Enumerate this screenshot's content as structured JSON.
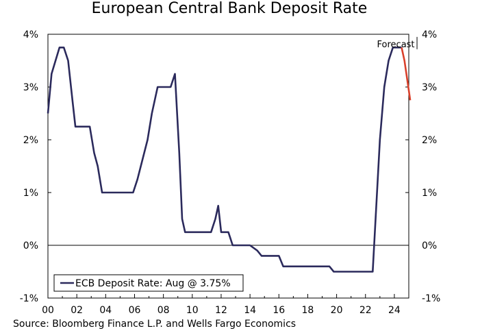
{
  "chart_data": {
    "type": "line",
    "title": "European Central Bank Deposit Rate",
    "xlabel": "",
    "ylabel": "",
    "xlim": [
      2000,
      2025
    ],
    "ylim": [
      -1,
      4
    ],
    "x_tick_labels": [
      "00",
      "02",
      "04",
      "06",
      "08",
      "10",
      "12",
      "14",
      "16",
      "18",
      "20",
      "22",
      "24"
    ],
    "y_tick_labels": [
      "-1%",
      "0%",
      "1%",
      "2%",
      "3%",
      "4%"
    ],
    "legend": "bottom-left",
    "grid": false,
    "series": [
      {
        "name": "ECB Deposit Rate: Aug @ 3.75%",
        "color": "#2b2a5c",
        "points": [
          [
            2000.0,
            2.5
          ],
          [
            2000.25,
            3.25
          ],
          [
            2000.8,
            3.75
          ],
          [
            2001.1,
            3.75
          ],
          [
            2001.4,
            3.5
          ],
          [
            2001.7,
            2.75
          ],
          [
            2001.9,
            2.25
          ],
          [
            2002.9,
            2.25
          ],
          [
            2003.2,
            1.75
          ],
          [
            2003.45,
            1.5
          ],
          [
            2003.75,
            1.0
          ],
          [
            2005.9,
            1.0
          ],
          [
            2006.2,
            1.25
          ],
          [
            2006.9,
            2.0
          ],
          [
            2007.2,
            2.5
          ],
          [
            2007.6,
            3.0
          ],
          [
            2008.5,
            3.0
          ],
          [
            2008.8,
            3.25
          ],
          [
            2009.1,
            1.75
          ],
          [
            2009.3,
            0.5
          ],
          [
            2009.5,
            0.25
          ],
          [
            2011.3,
            0.25
          ],
          [
            2011.6,
            0.5
          ],
          [
            2011.8,
            0.75
          ],
          [
            2012.0,
            0.25
          ],
          [
            2012.5,
            0.25
          ],
          [
            2012.8,
            0.0
          ],
          [
            2014.0,
            0.0
          ],
          [
            2014.5,
            -0.1
          ],
          [
            2014.8,
            -0.2
          ],
          [
            2016.0,
            -0.2
          ],
          [
            2016.3,
            -0.4
          ],
          [
            2019.5,
            -0.4
          ],
          [
            2019.8,
            -0.5
          ],
          [
            2022.5,
            -0.5
          ],
          [
            2023.0,
            2.0
          ],
          [
            2023.3,
            3.0
          ],
          [
            2023.6,
            3.5
          ],
          [
            2023.9,
            3.75
          ],
          [
            2024.5,
            3.75
          ]
        ]
      },
      {
        "name": "Forecast",
        "color": "#d9402b",
        "points": [
          [
            2024.5,
            3.75
          ],
          [
            2024.7,
            3.5
          ],
          [
            2025.1,
            2.75
          ]
        ]
      }
    ],
    "annotations": [
      {
        "text": "Forecast",
        "x": 2024.1,
        "y": 3.95
      }
    ]
  },
  "source": "Source: Bloomberg Finance L.P. and Wells Fargo Economics"
}
